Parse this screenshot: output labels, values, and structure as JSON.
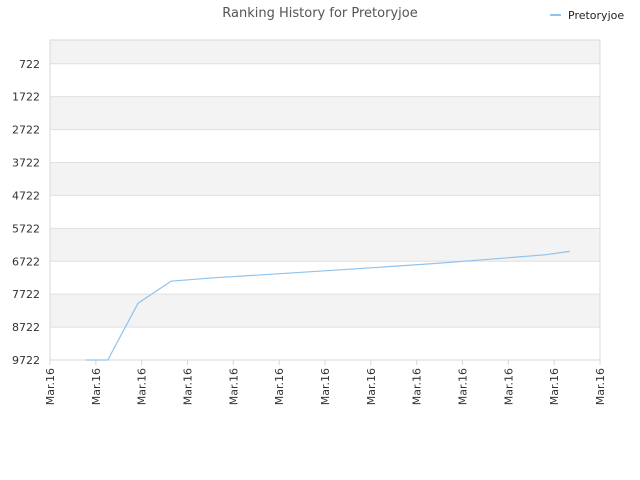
{
  "chart_data": {
    "type": "line",
    "title": "Ranking History for Pretoryjoe",
    "xlabel": "",
    "ylabel": "",
    "y_inverted": true,
    "ylim": [
      9722,
      0
    ],
    "yticks": [
      722,
      1722,
      2722,
      3722,
      4722,
      5722,
      6722,
      7722,
      8722,
      9722
    ],
    "y_tick_labels": [
      "722",
      "1722",
      "2722",
      "3722",
      "4722",
      "5722",
      "6722",
      "7722",
      "8722",
      "9722"
    ],
    "x_tick_labels": [
      "Mar.16",
      "Mar.16",
      "Mar.16",
      "Mar.16",
      "Mar.16",
      "Mar.16",
      "Mar.16",
      "Mar.16",
      "Mar.16",
      "Mar.16",
      "Mar.16",
      "Mar.16",
      "Mar.16"
    ],
    "grid": true,
    "legend_position": "top-right",
    "series": [
      {
        "name": "Pretoryjoe",
        "color": "#90c3ee",
        "x": [
          0.065,
          0.105,
          0.16,
          0.22,
          0.3,
          0.4,
          0.5,
          0.6,
          0.7,
          0.8,
          0.9,
          0.945
        ],
        "y": [
          9722,
          9722,
          7999,
          7327,
          7222,
          7118,
          7012,
          6903,
          6790,
          6659,
          6527,
          6422
        ]
      }
    ]
  },
  "colors": {
    "band": "#f3f3f3",
    "grid": "#e0e0e0",
    "axis": "#d8d8d8",
    "line": "#90c3ee"
  }
}
